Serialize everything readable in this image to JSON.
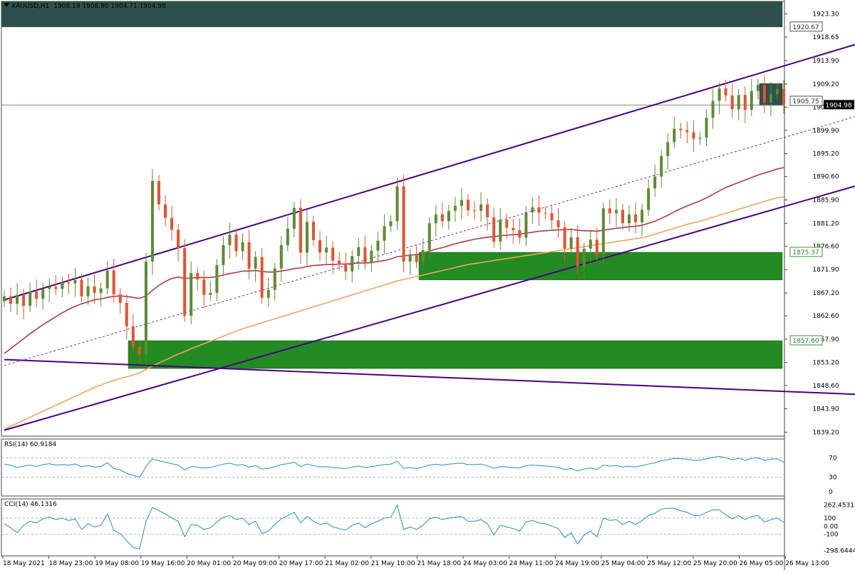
{
  "header": {
    "symbol": "XAUUSD,H1",
    "ohlc": "1908.19 1908.90 1904.71 1904.98",
    "arrow_icon": "triangle-down-icon"
  },
  "chart_data": [
    {
      "type": "candlestick",
      "title": "XAUUSD,H1 1908.19 1908.90 1904.71 1904.98",
      "ylim": [
        1838.4,
        1925.8
      ],
      "y_ticks": [
        "1923.30",
        "1918.65",
        "1913.90",
        "1909.20",
        "1904.55",
        "1899.90",
        "1895.20",
        "1890.60",
        "1885.90",
        "1881.20",
        "1876.60",
        "1871.90",
        "1867.20",
        "1862.60",
        "1857.90",
        "1853.20",
        "1848.60",
        "1843.90",
        "1839.20"
      ],
      "x_labels": [
        "18 May 2021",
        "18 May 23:00",
        "19 May 08:00",
        "19 May 16:00",
        "20 May 01:00",
        "20 May 09:00",
        "20 May 17:00",
        "21 May 02:00",
        "21 May 10:00",
        "21 May 18:00",
        "24 May 03:00",
        "24 May 11:00",
        "24 May 19:00",
        "25 May 04:00",
        "25 May 12:00",
        "25 May 20:00",
        "26 May 05:00",
        "26 May 13:00"
      ],
      "current_price": "1904.98",
      "level_labels": [
        "1920.67",
        "1905.75",
        "1875.37",
        "1857.60"
      ],
      "key_levels": [
        1920.67,
        1905.75,
        1875.37,
        1857.6
      ],
      "zones": [
        {
          "from": 1920.67,
          "to": 1925.8,
          "color": "#2f4f4f"
        },
        {
          "from": 1869.8,
          "to": 1875.37,
          "color": "#228b22"
        },
        {
          "from": 1852.0,
          "to": 1857.6,
          "color": "#228b22"
        },
        {
          "from": 1904.9,
          "to": 1909.3,
          "color": "#2f4f4f"
        }
      ],
      "closes": [
        1866.5,
        1865.0,
        1866.8,
        1864.6,
        1867.5,
        1866.0,
        1868.0,
        1868.4,
        1868.0,
        1869.3,
        1869.1,
        1869.8,
        1866.5,
        1868.5,
        1867.2,
        1868.1,
        1871.7,
        1866.9,
        1865.2,
        1860.5,
        1856.3,
        1854.8,
        1873.5,
        1889.7,
        1885.0,
        1882.3,
        1879.9,
        1876.2,
        1862.6,
        1871.2,
        1869.9,
        1866.8,
        1867.2,
        1872.8,
        1876.8,
        1878.9,
        1875.6,
        1877.4,
        1872.1,
        1874.4,
        1866.2,
        1867.8,
        1872.1,
        1876.8,
        1880.1,
        1884.3,
        1875.3,
        1881.5,
        1877.8,
        1875.3,
        1876.3,
        1873.7,
        1872.9,
        1871.5,
        1874.6,
        1876.4,
        1873.2,
        1875.7,
        1877.7,
        1880.6,
        1881.6,
        1888.6,
        1873.5,
        1874.9,
        1873.4,
        1875.8,
        1881.2,
        1883.0,
        1881.6,
        1883.7,
        1884.7,
        1885.9,
        1883.8,
        1883.7,
        1885.0,
        1882.4,
        1877.5,
        1881.9,
        1880.3,
        1879.8,
        1878.3,
        1883.4,
        1884.4,
        1883.3,
        1883.2,
        1881.8,
        1880.4,
        1876.1,
        1878.4,
        1872.5,
        1876.1,
        1877.9,
        1874.8,
        1884.2,
        1883.2,
        1883.9,
        1881.2,
        1883.0,
        1881.4,
        1883.9,
        1888.2,
        1890.6,
        1894.7,
        1897.5,
        1900.2,
        1899.9,
        1899.5,
        1898.2,
        1898.4,
        1902.4,
        1905.8,
        1908.3,
        1906.9,
        1904.1,
        1907.0,
        1904.0,
        1907.8,
        1909.0,
        1905.5,
        1907.2,
        1908.2,
        1904.98
      ],
      "series": [
        {
          "name": "MA slow",
          "color": "#f4a460",
          "values": [
            1839.8,
            1840.4,
            1841.0,
            1841.6,
            1842.2,
            1842.8,
            1843.4,
            1844.0,
            1844.6,
            1845.2,
            1845.8,
            1846.4,
            1847.0,
            1847.6,
            1848.2,
            1848.7,
            1849.2,
            1849.6,
            1850.0,
            1850.3,
            1850.7,
            1851.1,
            1851.8,
            1852.5,
            1853.1,
            1853.7,
            1854.3,
            1854.9,
            1855.4,
            1856.0,
            1856.5,
            1857.0,
            1857.5,
            1858.0,
            1858.5,
            1859.0,
            1859.5,
            1860.0,
            1860.4,
            1860.8,
            1861.2,
            1861.6,
            1862.0,
            1862.4,
            1862.8,
            1863.2,
            1863.6,
            1864.0,
            1864.4,
            1864.8,
            1865.2,
            1865.6,
            1866.0,
            1866.4,
            1866.8,
            1867.2,
            1867.6,
            1868.0,
            1868.4,
            1868.8,
            1869.2,
            1869.6,
            1869.9,
            1870.2,
            1870.5,
            1870.8,
            1871.1,
            1871.4,
            1871.7,
            1872.0,
            1872.3,
            1872.6,
            1872.9,
            1873.1,
            1873.3,
            1873.5,
            1873.7,
            1873.9,
            1874.1,
            1874.3,
            1874.5,
            1874.7,
            1874.9,
            1875.1,
            1875.3,
            1875.5,
            1875.7,
            1875.9,
            1876.1,
            1876.3,
            1876.5,
            1876.7,
            1876.9,
            1877.1,
            1877.3,
            1877.5,
            1877.7,
            1877.9,
            1878.1,
            1878.3,
            1878.6,
            1879.0,
            1879.4,
            1879.8,
            1880.2,
            1880.6,
            1881.0,
            1881.3,
            1881.6,
            1882.0,
            1882.4,
            1882.8,
            1883.2,
            1883.6,
            1884.0,
            1884.4,
            1884.8,
            1885.2,
            1885.6,
            1886.0,
            1886.3,
            1886.5
          ]
        },
        {
          "name": "MA fast",
          "color": "#b03a48",
          "values": [
            1855.0,
            1856.0,
            1857.0,
            1858.0,
            1859.0,
            1859.9,
            1860.8,
            1861.6,
            1862.4,
            1863.2,
            1863.9,
            1864.5,
            1865.0,
            1865.4,
            1865.8,
            1866.0,
            1866.3,
            1866.5,
            1866.6,
            1866.5,
            1866.3,
            1866.1,
            1866.6,
            1867.7,
            1868.7,
            1869.5,
            1870.1,
            1870.4,
            1870.1,
            1870.2,
            1870.3,
            1870.3,
            1870.3,
            1870.5,
            1870.8,
            1871.1,
            1871.3,
            1871.6,
            1871.6,
            1871.7,
            1871.5,
            1871.4,
            1871.4,
            1871.6,
            1871.8,
            1872.1,
            1872.2,
            1872.5,
            1872.7,
            1872.8,
            1872.9,
            1872.9,
            1873.0,
            1873.0,
            1873.1,
            1873.2,
            1873.2,
            1873.3,
            1873.5,
            1873.7,
            1874.0,
            1874.5,
            1874.6,
            1874.8,
            1874.9,
            1875.2,
            1875.6,
            1876.0,
            1876.3,
            1876.7,
            1877.1,
            1877.4,
            1877.7,
            1878.0,
            1878.2,
            1878.4,
            1878.5,
            1878.7,
            1878.8,
            1878.9,
            1879.0,
            1879.2,
            1879.4,
            1879.6,
            1879.7,
            1879.8,
            1879.9,
            1879.9,
            1880.0,
            1879.8,
            1879.7,
            1879.7,
            1879.6,
            1879.8,
            1880.0,
            1880.2,
            1880.3,
            1880.5,
            1880.6,
            1880.8,
            1881.2,
            1881.6,
            1882.2,
            1882.8,
            1883.5,
            1884.1,
            1884.7,
            1885.2,
            1885.7,
            1886.3,
            1887.0,
            1887.7,
            1888.4,
            1888.9,
            1889.4,
            1889.9,
            1890.4,
            1890.9,
            1891.3,
            1891.7,
            1892.1,
            1892.4
          ]
        }
      ],
      "channel_lines": [
        {
          "from": [
            0,
            1865.8
          ],
          "to": [
            123,
            1913.6
          ],
          "style": "solid",
          "color": "#4b0082"
        },
        {
          "from": [
            0,
            1839.6
          ],
          "to": [
            123,
            1885.3
          ],
          "style": "solid",
          "color": "#4b0082"
        },
        {
          "from": [
            0,
            1852.6
          ],
          "to": [
            123,
            1899.2
          ],
          "style": "dashed",
          "color": "#4b0082"
        },
        {
          "from": [
            0,
            1853.8
          ],
          "to": [
            123,
            1847.3
          ],
          "style": "solid",
          "color": "#4b0082"
        }
      ]
    },
    {
      "type": "line",
      "title": "RSI(14) 60.9184",
      "ylim": [
        0,
        100
      ],
      "y_ticks": [
        "70",
        "30",
        "0"
      ],
      "levels": [
        70,
        30
      ],
      "color": "#1e90c8",
      "values": [
        57,
        55,
        50,
        53,
        55,
        52,
        56,
        58,
        55,
        56,
        55,
        57,
        52,
        54,
        51,
        52,
        60,
        48,
        45,
        38,
        34,
        30,
        52,
        68,
        64,
        61,
        58,
        55,
        45,
        52,
        51,
        49,
        50,
        54,
        57,
        59,
        55,
        56,
        51,
        54,
        47,
        48,
        52,
        56,
        58,
        61,
        52,
        57,
        54,
        51,
        52,
        50,
        49,
        48,
        51,
        53,
        50,
        52,
        54,
        56,
        57,
        63,
        48,
        50,
        48,
        51,
        55,
        57,
        55,
        57,
        58,
        59,
        56,
        56,
        57,
        54,
        48,
        52,
        51,
        50,
        49,
        54,
        55,
        54,
        53,
        52,
        50,
        46,
        48,
        43,
        47,
        49,
        46,
        55,
        53,
        54,
        51,
        53,
        51,
        54,
        57,
        60,
        64,
        66,
        69,
        68,
        67,
        65,
        65,
        68,
        71,
        73,
        70,
        66,
        69,
        65,
        69,
        70,
        65,
        67,
        68,
        60.9
      ]
    },
    {
      "type": "line",
      "title": "CCI(14) 46.1316",
      "ylim": [
        -330,
        300
      ],
      "y_ticks": [
        "262.4531",
        "100",
        "0.00",
        "-100",
        "-298.6444"
      ],
      "levels": [
        100,
        -100
      ],
      "color": "#1e90c8",
      "values": [
        30,
        -20,
        -80,
        10,
        60,
        40,
        90,
        110,
        80,
        100,
        70,
        90,
        -40,
        30,
        -10,
        10,
        150,
        -50,
        -90,
        -180,
        -260,
        -280,
        60,
        230,
        190,
        150,
        100,
        60,
        -130,
        20,
        10,
        -40,
        -20,
        50,
        110,
        130,
        80,
        100,
        20,
        60,
        -90,
        -60,
        20,
        90,
        130,
        170,
        40,
        120,
        60,
        20,
        40,
        -10,
        -30,
        -50,
        10,
        40,
        -20,
        30,
        60,
        100,
        110,
        260,
        -40,
        -10,
        -40,
        10,
        90,
        110,
        80,
        100,
        110,
        120,
        60,
        60,
        80,
        30,
        -110,
        10,
        -10,
        -30,
        -60,
        50,
        70,
        40,
        30,
        0,
        -30,
        -140,
        -80,
        -220,
        -110,
        -60,
        -130,
        100,
        70,
        80,
        20,
        60,
        20,
        70,
        130,
        160,
        210,
        220,
        220,
        190,
        170,
        130,
        130,
        170,
        200,
        200,
        140,
        90,
        130,
        80,
        120,
        130,
        50,
        80,
        100,
        46.1
      ]
    }
  ]
}
